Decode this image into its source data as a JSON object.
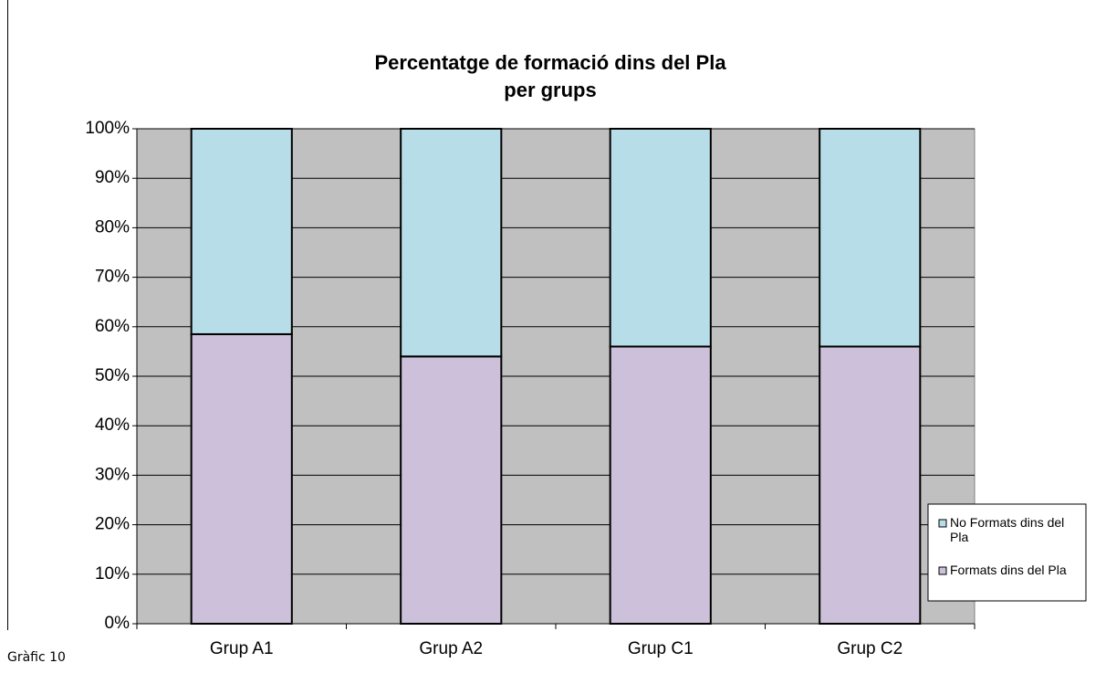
{
  "chart_data": {
    "type": "stacked_bar",
    "title": [
      "Percentatge de formació dins del Pla",
      "per grups"
    ],
    "categories": [
      "Grup A1",
      "Grup A2",
      "Grup C1",
      "Grup C2"
    ],
    "series": [
      {
        "name": "Formats dins del Pla",
        "color": "#ccc0da",
        "values": [
          58.5,
          54,
          56,
          56
        ]
      },
      {
        "name": "No Formats dins del Pla",
        "color": "#b7dde8",
        "values": [
          41.5,
          46,
          44,
          44
        ]
      }
    ],
    "ylim": [
      0,
      100
    ],
    "yticks": [
      {
        "value": 0,
        "label": "0%"
      },
      {
        "value": 10,
        "label": "10%"
      },
      {
        "value": 20,
        "label": "20%"
      },
      {
        "value": 30,
        "label": "30%"
      },
      {
        "value": 40,
        "label": "40%"
      },
      {
        "value": 50,
        "label": "50%"
      },
      {
        "value": 60,
        "label": "60%"
      },
      {
        "value": 70,
        "label": "70%"
      },
      {
        "value": 80,
        "label": "80%"
      },
      {
        "value": 90,
        "label": "90%"
      },
      {
        "value": 100,
        "label": "100%"
      }
    ],
    "grid": true,
    "plot_background": "#c0c0c0",
    "legend": "right",
    "caption": "Gràfic 10"
  }
}
